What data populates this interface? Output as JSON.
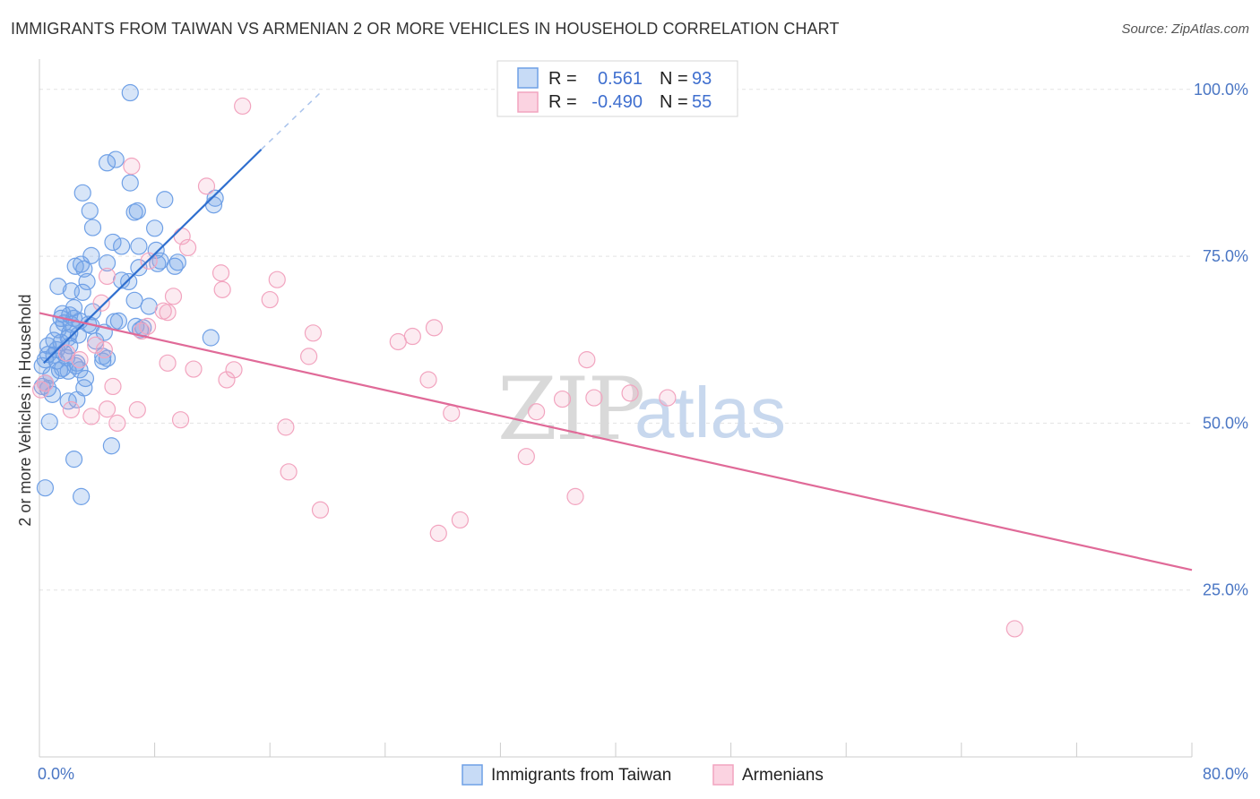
{
  "title": "IMMIGRANTS FROM TAIWAN VS ARMENIAN 2 OR MORE VEHICLES IN HOUSEHOLD CORRELATION CHART",
  "source": "Source: ZipAtlas.com",
  "watermark": {
    "zip": "ZIP",
    "atlas": "atlas"
  },
  "colors": {
    "blue": "#6fa0e6",
    "blue_line": "#2f6fcf",
    "pink": "#f2a4bf",
    "pink_line": "#e06a98",
    "tick": "#4a76c4",
    "grid": "#e3e3e3"
  },
  "legend": {
    "rows": [
      {
        "r_label": "R =",
        "r_value": "0.561",
        "n_label": "N =",
        "n_value": "93",
        "color": "#6fa0e6"
      },
      {
        "r_label": "R =",
        "r_value": "-0.490",
        "n_label": "N =",
        "n_value": "55",
        "color": "#f2a4bf"
      }
    ]
  },
  "chart_data": {
    "type": "scatter",
    "title": "IMMIGRANTS FROM TAIWAN VS ARMENIAN 2 OR MORE VEHICLES IN HOUSEHOLD CORRELATION CHART",
    "xlabel": "",
    "ylabel": "2 or more Vehicles in Household",
    "xlim": [
      0,
      80
    ],
    "ylim": [
      0,
      104
    ],
    "x_tick_labels": [
      "0.0%",
      "80.0%"
    ],
    "y_ticks": [
      25,
      50,
      75,
      100
    ],
    "y_tick_labels": [
      "25.0%",
      "50.0%",
      "75.0%",
      "100.0%"
    ],
    "grid": true,
    "series": [
      {
        "name": "Immigrants from Taiwan",
        "color": "#6fa0e6",
        "trend": {
          "x": [
            0.3,
            15.4
          ],
          "y": [
            59.0,
            91.0
          ],
          "dashed_to": [
            19.5,
            99.5
          ]
        },
        "points": [
          [
            6.3,
            99.5
          ],
          [
            5.3,
            89.5
          ],
          [
            4.7,
            89.0
          ],
          [
            6.3,
            86.0
          ],
          [
            3.0,
            84.5
          ],
          [
            8.7,
            83.5
          ],
          [
            12.2,
            83.7
          ],
          [
            12.1,
            82.7
          ],
          [
            3.5,
            81.8
          ],
          [
            6.6,
            81.6
          ],
          [
            6.8,
            81.8
          ],
          [
            3.7,
            79.3
          ],
          [
            8.0,
            79.2
          ],
          [
            5.1,
            77.1
          ],
          [
            5.7,
            76.5
          ],
          [
            6.9,
            76.5
          ],
          [
            8.1,
            75.9
          ],
          [
            3.6,
            75.1
          ],
          [
            8.4,
            74.3
          ],
          [
            9.6,
            74.1
          ],
          [
            8.2,
            73.9
          ],
          [
            2.9,
            73.8
          ],
          [
            2.5,
            73.5
          ],
          [
            3.1,
            73.1
          ],
          [
            4.7,
            74.0
          ],
          [
            9.4,
            73.5
          ],
          [
            6.9,
            73.3
          ],
          [
            3.3,
            71.2
          ],
          [
            5.7,
            71.4
          ],
          [
            6.2,
            71.2
          ],
          [
            1.3,
            70.5
          ],
          [
            3.0,
            69.6
          ],
          [
            2.2,
            69.8
          ],
          [
            6.6,
            68.4
          ],
          [
            2.4,
            67.3
          ],
          [
            3.7,
            66.7
          ],
          [
            1.6,
            66.4
          ],
          [
            1.5,
            65.7
          ],
          [
            2.1,
            66.2
          ],
          [
            2.4,
            65.7
          ],
          [
            2.8,
            65.3
          ],
          [
            1.7,
            65.0
          ],
          [
            2.2,
            64.8
          ],
          [
            3.4,
            64.8
          ],
          [
            3.6,
            64.6
          ],
          [
            5.5,
            65.3
          ],
          [
            6.7,
            64.5
          ],
          [
            7.0,
            64.0
          ],
          [
            1.3,
            64.0
          ],
          [
            2.7,
            63.2
          ],
          [
            11.9,
            62.8
          ],
          [
            1.5,
            62.1
          ],
          [
            2.1,
            61.6
          ],
          [
            0.6,
            61.6
          ],
          [
            1.2,
            61.0
          ],
          [
            0.6,
            60.3
          ],
          [
            1.7,
            60.5
          ],
          [
            1.0,
            60.2
          ],
          [
            4.4,
            60.0
          ],
          [
            4.7,
            59.7
          ],
          [
            0.4,
            59.5
          ],
          [
            1.2,
            59.3
          ],
          [
            4.4,
            59.3
          ],
          [
            2.6,
            59.0
          ],
          [
            1.6,
            58.2
          ],
          [
            2.8,
            58.0
          ],
          [
            2.0,
            57.8
          ],
          [
            0.4,
            56.0
          ],
          [
            0.2,
            55.5
          ],
          [
            0.6,
            55.2
          ],
          [
            3.1,
            55.3
          ],
          [
            2.6,
            53.5
          ],
          [
            2.0,
            53.3
          ],
          [
            0.7,
            50.2
          ],
          [
            5.0,
            46.6
          ],
          [
            2.4,
            44.6
          ],
          [
            0.4,
            40.3
          ],
          [
            2.9,
            39.0
          ],
          [
            0.2,
            58.6
          ],
          [
            0.8,
            57.2
          ],
          [
            1.9,
            59.8
          ],
          [
            3.9,
            62.3
          ],
          [
            4.5,
            63.6
          ],
          [
            7.6,
            67.5
          ],
          [
            2.1,
            63.5
          ],
          [
            1.0,
            62.4
          ],
          [
            2.5,
            58.6
          ],
          [
            1.4,
            57.9
          ],
          [
            3.2,
            56.7
          ],
          [
            0.9,
            54.3
          ],
          [
            2.0,
            62.8
          ],
          [
            7.2,
            64.3
          ],
          [
            5.2,
            65.2
          ]
        ]
      },
      {
        "name": "Armenians",
        "color": "#f2a4bf",
        "trend": {
          "x": [
            0.0,
            80.0
          ],
          "y": [
            66.5,
            28.0
          ]
        },
        "points": [
          [
            14.1,
            97.5
          ],
          [
            11.6,
            85.5
          ],
          [
            6.4,
            88.5
          ],
          [
            9.9,
            78.0
          ],
          [
            10.3,
            76.3
          ],
          [
            7.6,
            74.3
          ],
          [
            12.6,
            72.5
          ],
          [
            16.5,
            71.5
          ],
          [
            12.7,
            70.0
          ],
          [
            4.7,
            72.0
          ],
          [
            9.3,
            69.0
          ],
          [
            16.0,
            68.5
          ],
          [
            4.3,
            68.0
          ],
          [
            8.6,
            66.8
          ],
          [
            8.9,
            66.6
          ],
          [
            27.4,
            64.3
          ],
          [
            7.5,
            64.5
          ],
          [
            7.1,
            63.8
          ],
          [
            19.0,
            63.5
          ],
          [
            24.9,
            62.2
          ],
          [
            25.9,
            63.0
          ],
          [
            3.9,
            61.7
          ],
          [
            4.5,
            61.0
          ],
          [
            1.9,
            60.5
          ],
          [
            18.7,
            60.0
          ],
          [
            38.0,
            59.5
          ],
          [
            2.8,
            59.5
          ],
          [
            8.9,
            59.0
          ],
          [
            10.7,
            58.1
          ],
          [
            13.5,
            58.0
          ],
          [
            13.0,
            56.5
          ],
          [
            27.0,
            56.5
          ],
          [
            0.4,
            56.0
          ],
          [
            5.1,
            55.5
          ],
          [
            41.0,
            54.5
          ],
          [
            38.5,
            53.8
          ],
          [
            36.3,
            53.6
          ],
          [
            43.6,
            53.8
          ],
          [
            4.7,
            52.1
          ],
          [
            2.2,
            52.0
          ],
          [
            6.8,
            52.0
          ],
          [
            34.5,
            51.7
          ],
          [
            28.6,
            51.5
          ],
          [
            3.6,
            51.0
          ],
          [
            9.8,
            50.5
          ],
          [
            5.4,
            50.0
          ],
          [
            17.1,
            49.4
          ],
          [
            33.8,
            45.0
          ],
          [
            17.3,
            42.7
          ],
          [
            37.2,
            39.0
          ],
          [
            19.5,
            37.0
          ],
          [
            29.2,
            35.5
          ],
          [
            27.7,
            33.5
          ],
          [
            67.7,
            19.2
          ],
          [
            0.1,
            55.0
          ]
        ]
      }
    ]
  }
}
